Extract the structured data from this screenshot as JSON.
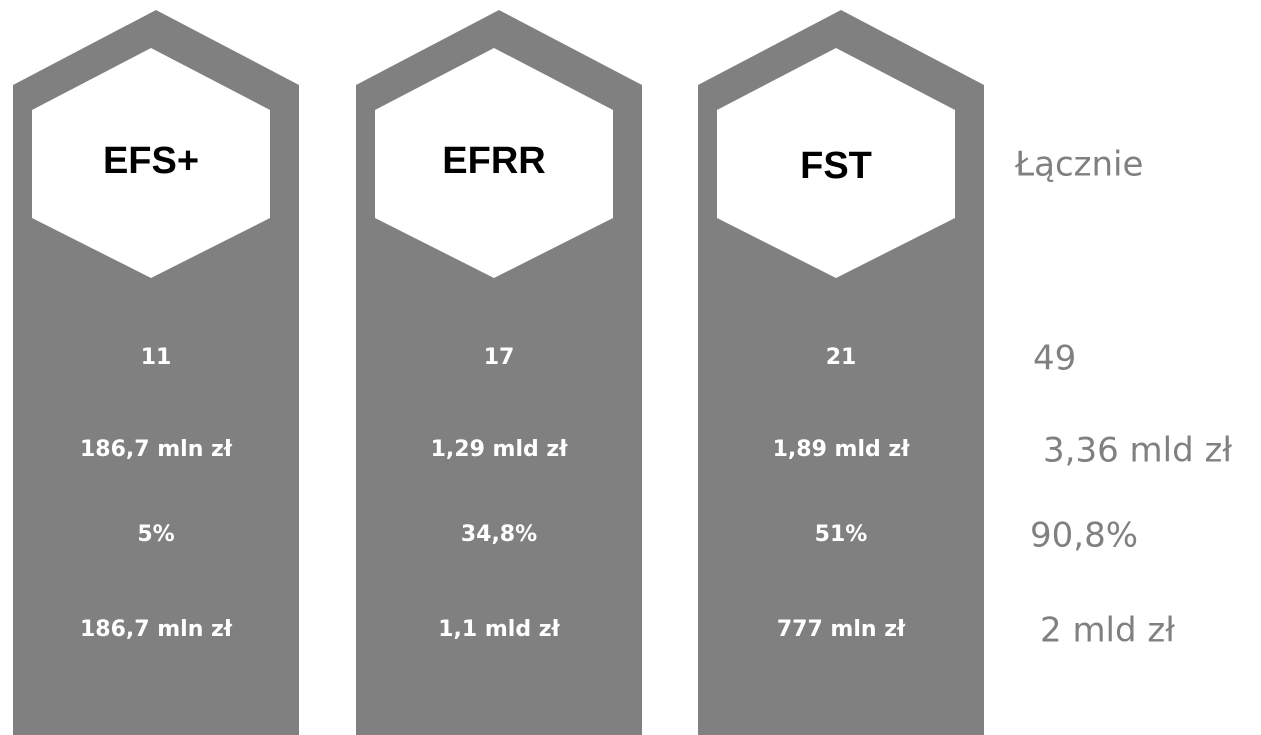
{
  "columns": [
    {
      "title": "EFS+",
      "values": [
        "11",
        "186,7 mln zł",
        "5%",
        "186,7 mln zł"
      ]
    },
    {
      "title": "EFRR",
      "values": [
        "17",
        "1,29 mld zł",
        "34,8%",
        "1,1 mld zł"
      ]
    },
    {
      "title": "FST",
      "values": [
        "21",
        "1,89 mld zł",
        "51%",
        "777 mln zł"
      ]
    }
  ],
  "total": {
    "title": "Łącznie",
    "values": [
      "49",
      "3,36 mld zł",
      "90,8%",
      "2 mld zł"
    ]
  }
}
